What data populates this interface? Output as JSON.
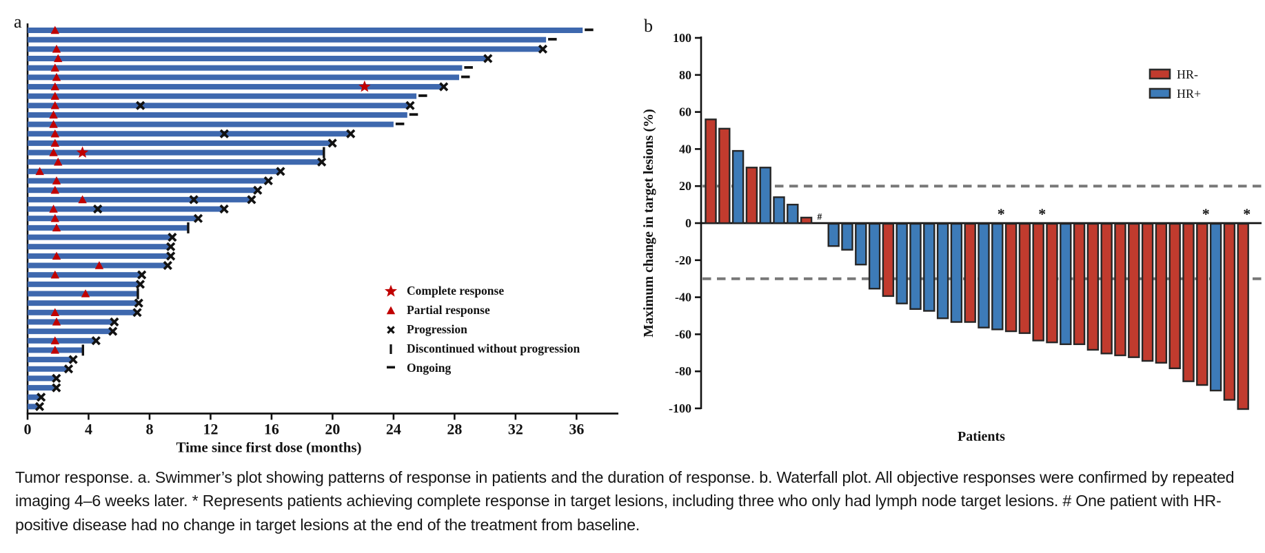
{
  "figure": {
    "panel_a_label": "a",
    "panel_b_label": "b",
    "caption": "Tumor response. a. Swimmer’s plot showing patterns of response in patients and the duration of response. b. Waterfall plot. All objective responses were confirmed by repeated imaging 4–6 weeks later. * Represents patients achieving complete response in target lesions, including three who only had lymph node target lesions. # One patient with HR-positive disease had no change in target lesions at the end of the treatment from baseline."
  },
  "chart_data": [
    {
      "type": "bar",
      "subtype": "swimmer",
      "xlabel": "Time since first dose (months)",
      "xticks": [
        0,
        4,
        8,
        12,
        16,
        20,
        24,
        28,
        32,
        36
      ],
      "xlim": [
        0,
        38.7
      ],
      "bar_color": "#3e68ae",
      "marker_red": "#c00000",
      "marker_black": "#121212",
      "legend": [
        {
          "marker": "star",
          "label": "Complete response"
        },
        {
          "marker": "triangle",
          "label": "Partial response"
        },
        {
          "marker": "x",
          "label": "Progression"
        },
        {
          "marker": "vbar",
          "label": "Discontinued without progression"
        },
        {
          "marker": "dash",
          "label": "Ongoing"
        }
      ],
      "patients": [
        {
          "d": 36.4,
          "pr": 1.8,
          "end": "ongoing"
        },
        {
          "d": 34.0,
          "end": "ongoing"
        },
        {
          "d": 33.7,
          "pr": 1.9,
          "end": "progression"
        },
        {
          "d": 30.1,
          "pr": 2.0,
          "end": "progression"
        },
        {
          "d": 28.5,
          "pr": 1.8,
          "end": "ongoing"
        },
        {
          "d": 28.3,
          "pr": 1.9,
          "end": "ongoing"
        },
        {
          "d": 27.2,
          "pr": 1.8,
          "cr": 22.1,
          "end": "progression"
        },
        {
          "d": 25.5,
          "pr": 1.8,
          "end": "ongoing"
        },
        {
          "d": 25.0,
          "pr": 1.8,
          "prog": [
            7.4
          ],
          "end": "progression"
        },
        {
          "d": 24.9,
          "pr": 1.7,
          "end": "ongoing"
        },
        {
          "d": 24.0,
          "pr": 1.7,
          "end": "ongoing"
        },
        {
          "d": 21.1,
          "pr": 1.8,
          "prog": [
            12.9
          ],
          "end": "progression"
        },
        {
          "d": 19.9,
          "pr": 1.8,
          "end": "progression"
        },
        {
          "d": 19.4,
          "pr": 1.7,
          "cr": 3.6,
          "end": "discontinued"
        },
        {
          "d": 19.2,
          "pr": 2.0,
          "end": "progression"
        },
        {
          "d": 16.5,
          "pr": 0.8,
          "end": "progression"
        },
        {
          "d": 15.7,
          "pr": 1.9,
          "end": "progression"
        },
        {
          "d": 15.0,
          "pr": 1.8,
          "end": "progression"
        },
        {
          "d": 14.6,
          "pr": 3.6,
          "prog": [
            10.9
          ],
          "end": "progression"
        },
        {
          "d": 12.8,
          "pr": 1.7,
          "prog": [
            4.6
          ],
          "end": "progression"
        },
        {
          "d": 11.1,
          "pr": 1.8,
          "end": "progression"
        },
        {
          "d": 10.5,
          "pr": 1.9,
          "end": "discontinued"
        },
        {
          "d": 9.4,
          "end": "progression"
        },
        {
          "d": 9.3,
          "end": "progression"
        },
        {
          "d": 9.3,
          "pr": 1.9,
          "end": "progression"
        },
        {
          "d": 9.1,
          "pr": 4.7,
          "end": "progression"
        },
        {
          "d": 7.4,
          "pr": 1.8,
          "end": "progression"
        },
        {
          "d": 7.3,
          "end": "progression"
        },
        {
          "d": 7.2,
          "pr": 3.8,
          "end": "discontinued"
        },
        {
          "d": 7.2,
          "end": "progression"
        },
        {
          "d": 7.1,
          "pr": 1.8,
          "end": "progression"
        },
        {
          "d": 5.6,
          "pr": 1.9,
          "end": "progression"
        },
        {
          "d": 5.5,
          "end": "progression"
        },
        {
          "d": 4.4,
          "pr": 1.8,
          "end": "progression"
        },
        {
          "d": 3.6,
          "pr": 1.8,
          "end": "discontinued"
        },
        {
          "d": 2.9,
          "end": "progression"
        },
        {
          "d": 2.6,
          "end": "progression"
        },
        {
          "d": 1.8,
          "end": "progression"
        },
        {
          "d": 1.8,
          "end": "progression"
        },
        {
          "d": 0.8,
          "end": "progression"
        },
        {
          "d": 0.7,
          "end": "progression"
        }
      ]
    },
    {
      "type": "bar",
      "subtype": "waterfall",
      "ylabel": "Maximum change in target lesions (%)",
      "xlabel": "Patients",
      "ylim": [
        -100,
        100
      ],
      "yticks": [
        100,
        80,
        60,
        40,
        20,
        0,
        -20,
        -40,
        -60,
        -80,
        -100
      ],
      "reference_lines": [
        20,
        -30
      ],
      "reference_line_color": "#787878",
      "colors": {
        "HR-": "#c13b2e",
        "HR+": "#3d7bb8"
      },
      "outline_color": "#262626",
      "legend": [
        {
          "label": "HR-",
          "group": "HR-"
        },
        {
          "label": "HR+",
          "group": "HR+"
        }
      ],
      "bars": [
        {
          "v": 56,
          "g": "HR-"
        },
        {
          "v": 51,
          "g": "HR-"
        },
        {
          "v": 39,
          "g": "HR+"
        },
        {
          "v": 30,
          "g": "HR-"
        },
        {
          "v": 30,
          "g": "HR+"
        },
        {
          "v": 14,
          "g": "HR+"
        },
        {
          "v": 10,
          "g": "HR+"
        },
        {
          "v": 3,
          "g": "HR-"
        },
        {
          "v": 0,
          "g": "HR+",
          "a": "#"
        },
        {
          "v": -12,
          "g": "HR+"
        },
        {
          "v": -14,
          "g": "HR+"
        },
        {
          "v": -22,
          "g": "HR+"
        },
        {
          "v": -35,
          "g": "HR+"
        },
        {
          "v": -39,
          "g": "HR-"
        },
        {
          "v": -43,
          "g": "HR+"
        },
        {
          "v": -46,
          "g": "HR+"
        },
        {
          "v": -47,
          "g": "HR+"
        },
        {
          "v": -51,
          "g": "HR+"
        },
        {
          "v": -53,
          "g": "HR+"
        },
        {
          "v": -53,
          "g": "HR-"
        },
        {
          "v": -56,
          "g": "HR+"
        },
        {
          "v": -57,
          "g": "HR+",
          "a": "*"
        },
        {
          "v": -58,
          "g": "HR-"
        },
        {
          "v": -59,
          "g": "HR-"
        },
        {
          "v": -63,
          "g": "HR-",
          "a": "*"
        },
        {
          "v": -64,
          "g": "HR-"
        },
        {
          "v": -65,
          "g": "HR+"
        },
        {
          "v": -65,
          "g": "HR-"
        },
        {
          "v": -68,
          "g": "HR-"
        },
        {
          "v": -70,
          "g": "HR-"
        },
        {
          "v": -71,
          "g": "HR-"
        },
        {
          "v": -72,
          "g": "HR-"
        },
        {
          "v": -74,
          "g": "HR-"
        },
        {
          "v": -75,
          "g": "HR-"
        },
        {
          "v": -78,
          "g": "HR-"
        },
        {
          "v": -85,
          "g": "HR-"
        },
        {
          "v": -87,
          "g": "HR-",
          "a": "*"
        },
        {
          "v": -90,
          "g": "HR+"
        },
        {
          "v": -95,
          "g": "HR-"
        },
        {
          "v": -100,
          "g": "HR-",
          "a": "*"
        }
      ]
    }
  ]
}
